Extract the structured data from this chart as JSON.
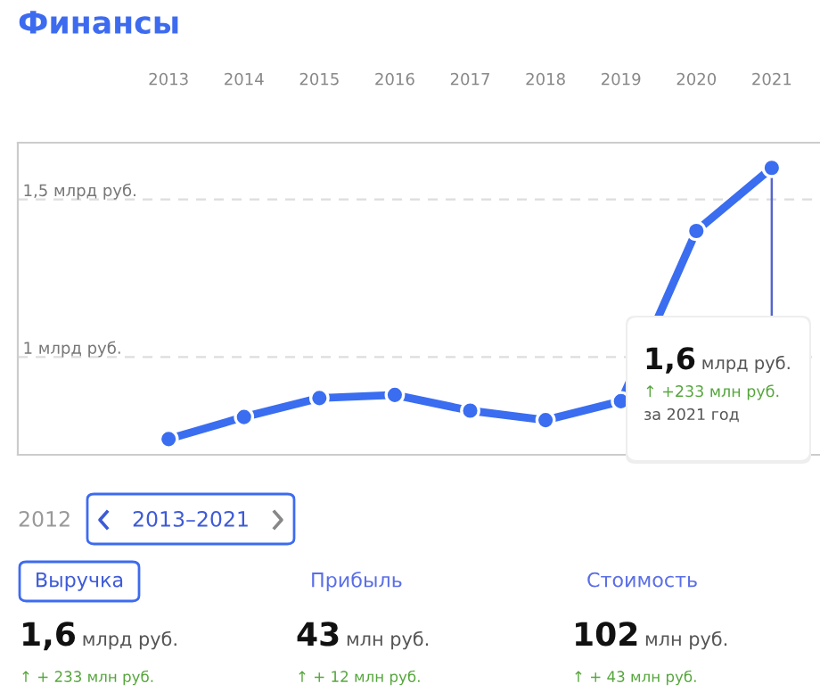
{
  "chart_data": {
    "type": "line",
    "title": "Финансы",
    "categories": [
      "2013",
      "2014",
      "2015",
      "2016",
      "2017",
      "2018",
      "2019",
      "2020",
      "2021"
    ],
    "series": [
      {
        "color": "#3a6df0",
        "values": [
          0.74,
          0.81,
          0.87,
          0.88,
          0.83,
          0.8,
          0.86,
          1.4,
          1.6
        ]
      }
    ],
    "ylim": [
      0.69,
      1.68
    ],
    "yticks": [
      {
        "value": 1,
        "label": "1 млрд руб."
      },
      {
        "value": 1.5,
        "label": "1,5 млрд руб."
      }
    ],
    "grid": "y",
    "marker": "circle",
    "line_style": "solid",
    "legend": false,
    "annotations": [
      "1,6 млрд руб.",
      "↑ +233 млн руб.",
      "за 2021 год",
      "2012",
      "2013–2021",
      "Выручка",
      "Прибыль",
      "Стоимость",
      "1,6 млрд руб.",
      "43 млн руб.",
      "102 млн руб.",
      "↑ + 233 млн руб.",
      "↑ + 12 млн руб.",
      "↑ + 43 млн руб."
    ]
  }
}
